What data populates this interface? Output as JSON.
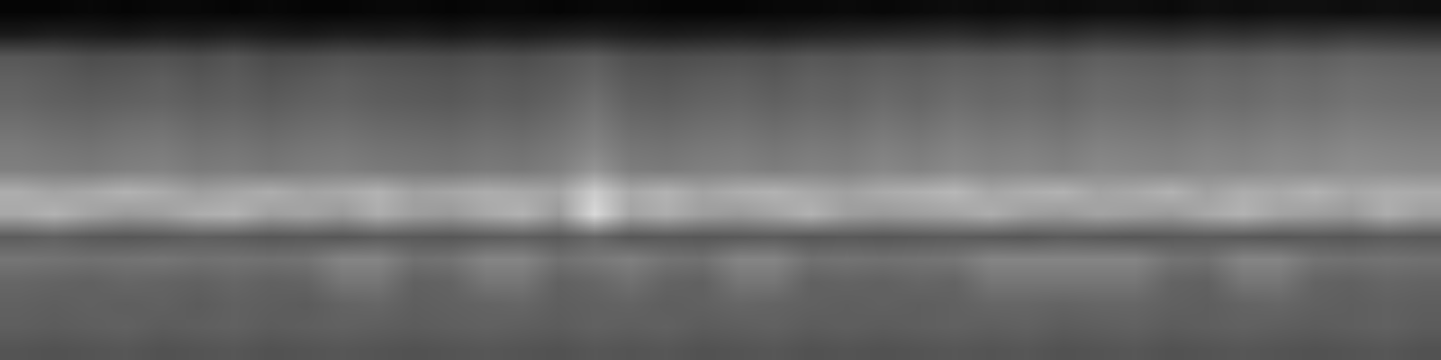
{
  "chart_data": {
    "type": "heatmap",
    "tick_labels": false,
    "x": [
      0,
      1,
      2,
      3,
      4,
      5,
      6,
      7,
      8,
      9,
      10,
      11,
      12,
      13,
      14,
      15,
      16,
      17,
      18,
      19,
      20,
      21,
      22,
      23,
      24,
      25,
      26,
      27,
      28,
      29,
      30,
      31,
      32,
      33,
      34,
      35,
      36,
      37,
      38,
      39
    ],
    "y": [
      15,
      14,
      13,
      12,
      11,
      10,
      9,
      8,
      7,
      6,
      5,
      4,
      3,
      2,
      1,
      0
    ],
    "xlim": [
      -0.5,
      39.5
    ],
    "ylim": [
      -0.5,
      15.5
    ],
    "zlim": [
      0,
      100
    ],
    "cells": [
      [
        2,
        2,
        3,
        2,
        3,
        3,
        2,
        3,
        2,
        2,
        3,
        3,
        2,
        3,
        3,
        2,
        3,
        3,
        2,
        2,
        2,
        3,
        3,
        4,
        3,
        4,
        5,
        4,
        5,
        4,
        5,
        5,
        4,
        6,
        5,
        6,
        6,
        5,
        6,
        5
      ],
      [
        10,
        12,
        11,
        10,
        12,
        11,
        13,
        11,
        10,
        12,
        11,
        12,
        10,
        12,
        11,
        13,
        14,
        12,
        11,
        12,
        13,
        12,
        14,
        15,
        16,
        17,
        18,
        16,
        18,
        17,
        20,
        19,
        18,
        20,
        19,
        21,
        20,
        22,
        21,
        20
      ],
      [
        34,
        33,
        30,
        31,
        32,
        30,
        33,
        29,
        30,
        32,
        31,
        30,
        29,
        31,
        30,
        33,
        36,
        31,
        30,
        31,
        32,
        31,
        34,
        33,
        35,
        34,
        36,
        35,
        36,
        34,
        37,
        36,
        35,
        37,
        36,
        38,
        37,
        39,
        38,
        37
      ],
      [
        38,
        36,
        34,
        35,
        37,
        34,
        36,
        33,
        35,
        37,
        35,
        34,
        33,
        35,
        34,
        36,
        40,
        35,
        34,
        36,
        37,
        35,
        38,
        37,
        39,
        38,
        40,
        39,
        40,
        38,
        41,
        40,
        39,
        41,
        40,
        42,
        41,
        43,
        42,
        41
      ],
      [
        40,
        38,
        37,
        38,
        39,
        37,
        38,
        36,
        38,
        39,
        37,
        36,
        35,
        37,
        36,
        39,
        44,
        38,
        37,
        39,
        40,
        38,
        40,
        39,
        42,
        40,
        43,
        41,
        42,
        40,
        43,
        42,
        41,
        43,
        42,
        44,
        43,
        45,
        44,
        43
      ],
      [
        44,
        42,
        41,
        43,
        44,
        41,
        42,
        40,
        42,
        43,
        41,
        40,
        39,
        41,
        40,
        43,
        48,
        42,
        41,
        43,
        44,
        42,
        44,
        43,
        46,
        44,
        47,
        45,
        46,
        44,
        47,
        46,
        45,
        47,
        46,
        48,
        47,
        49,
        48,
        47
      ],
      [
        48,
        46,
        45,
        47,
        48,
        45,
        46,
        44,
        46,
        47,
        45,
        44,
        43,
        45,
        44,
        47,
        52,
        46,
        45,
        47,
        48,
        46,
        48,
        47,
        50,
        48,
        51,
        49,
        50,
        48,
        51,
        50,
        49,
        51,
        50,
        52,
        51,
        53,
        52,
        51
      ],
      [
        50,
        49,
        48,
        50,
        51,
        48,
        49,
        47,
        49,
        50,
        48,
        47,
        46,
        48,
        47,
        50,
        58,
        49,
        48,
        50,
        51,
        49,
        51,
        50,
        53,
        51,
        54,
        52,
        53,
        51,
        54,
        53,
        52,
        54,
        53,
        55,
        54,
        56,
        55,
        54
      ],
      [
        68,
        64,
        66,
        70,
        67,
        62,
        65,
        68,
        64,
        66,
        70,
        63,
        65,
        68,
        66,
        64,
        80,
        66,
        70,
        64,
        68,
        70,
        66,
        63,
        67,
        69,
        72,
        65,
        68,
        70,
        64,
        66,
        70,
        63,
        68,
        66,
        70,
        65,
        68,
        67
      ],
      [
        66,
        70,
        64,
        60,
        62,
        68,
        70,
        62,
        64,
        60,
        68,
        62,
        60,
        66,
        70,
        60,
        85,
        64,
        68,
        62,
        60,
        64,
        70,
        62,
        60,
        62,
        64,
        68,
        62,
        60,
        64,
        62,
        60,
        66,
        70,
        64,
        62,
        60,
        68,
        62
      ],
      [
        36,
        38,
        35,
        34,
        35,
        37,
        36,
        34,
        35,
        34,
        36,
        35,
        34,
        36,
        37,
        35,
        40,
        34,
        35,
        34,
        35,
        36,
        34,
        35,
        34,
        35,
        36,
        35,
        34,
        36,
        35,
        34,
        35,
        36,
        35,
        34,
        35,
        34,
        36,
        35
      ],
      [
        46,
        45,
        44,
        45,
        46,
        44,
        45,
        44,
        45,
        52,
        52,
        44,
        45,
        52,
        52,
        44,
        47,
        50,
        45,
        44,
        52,
        52,
        44,
        45,
        44,
        45,
        46,
        52,
        52,
        52,
        52,
        52,
        45,
        44,
        52,
        52,
        45,
        44,
        45,
        44
      ],
      [
        40,
        39,
        38,
        40,
        39,
        38,
        40,
        38,
        39,
        46,
        46,
        38,
        39,
        46,
        46,
        38,
        40,
        44,
        39,
        38,
        46,
        46,
        38,
        39,
        38,
        40,
        39,
        46,
        46,
        46,
        46,
        46,
        39,
        38,
        46,
        46,
        39,
        38,
        40,
        39
      ],
      [
        38,
        37,
        38,
        37,
        38,
        36,
        38,
        37,
        36,
        39,
        40,
        37,
        38,
        39,
        40,
        37,
        38,
        39,
        37,
        38,
        40,
        39,
        38,
        37,
        38,
        37,
        38,
        40,
        40,
        39,
        40,
        40,
        38,
        37,
        39,
        40,
        38,
        37,
        38,
        37
      ],
      [
        37,
        36,
        37,
        38,
        36,
        37,
        38,
        36,
        37,
        38,
        37,
        36,
        37,
        38,
        37,
        36,
        38,
        37,
        38,
        36,
        37,
        38,
        36,
        37,
        36,
        37,
        38,
        37,
        38,
        36,
        37,
        38,
        36,
        37,
        38,
        37,
        36,
        37,
        38,
        36
      ],
      [
        33,
        32,
        33,
        34,
        32,
        33,
        34,
        32,
        33,
        34,
        33,
        32,
        33,
        34,
        33,
        32,
        34,
        33,
        34,
        32,
        33,
        34,
        32,
        33,
        32,
        33,
        34,
        33,
        34,
        32,
        33,
        34,
        32,
        33,
        34,
        33,
        32,
        33,
        34,
        32
      ]
    ]
  }
}
